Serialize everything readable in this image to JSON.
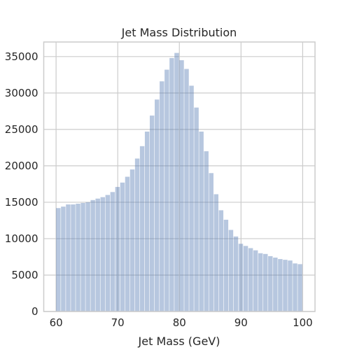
{
  "chart_data": {
    "type": "bar",
    "title": "Jet Mass Distribution",
    "xlabel": "Jet Mass (GeV)",
    "ylabel": "",
    "bin_start": 60,
    "bin_width": 0.8,
    "values": [
      14200,
      14400,
      14700,
      14700,
      14800,
      14900,
      15000,
      15300,
      15500,
      15700,
      16000,
      16400,
      17100,
      17700,
      18500,
      19500,
      21000,
      22700,
      24700,
      26900,
      29100,
      31600,
      33200,
      34800,
      35500,
      34500,
      33300,
      31000,
      28000,
      24700,
      22000,
      19000,
      16100,
      13900,
      12600,
      11200,
      10300,
      9300,
      9000,
      8700,
      8400,
      8000,
      7900,
      7600,
      7400,
      7200,
      7100,
      7000,
      6600,
      6500
    ],
    "xlim": [
      58,
      102
    ],
    "ylim": [
      0,
      37000
    ],
    "xticks": [
      "60",
      "70",
      "80",
      "90",
      "100"
    ],
    "yticks": [
      "0",
      "5000",
      "10000",
      "15000",
      "20000",
      "25000",
      "30000",
      "35000"
    ],
    "grid": true,
    "colors": {
      "bar": "#4c72b0",
      "grid": "#cccccc",
      "axes": "#cccccc"
    }
  }
}
